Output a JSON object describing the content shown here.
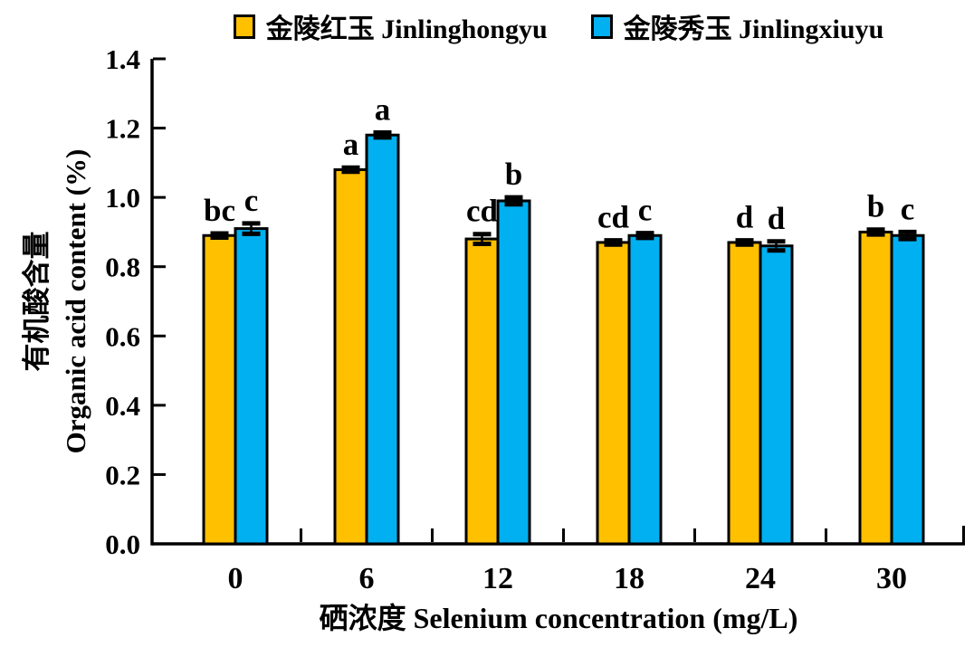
{
  "chart_data": {
    "type": "bar",
    "title": "",
    "categories": [
      "0",
      "6",
      "12",
      "18",
      "24",
      "30"
    ],
    "xlabel": "硒浓度 Selenium concentration (mg/L)",
    "ylabel_zh": "有机酸含量",
    "ylabel_en": "Organic acid content (%)",
    "ylim": [
      0.0,
      1.4
    ],
    "ytick_step": 0.2,
    "yticks": [
      "0.0",
      "0.2",
      "0.4",
      "0.6",
      "0.8",
      "1.0",
      "1.2",
      "1.4"
    ],
    "grid": false,
    "legend_position": "top",
    "axis_color": "#000000",
    "bar_outline_color": "#000000",
    "series": [
      {
        "name": "金陵红玉 Jinlinghongyu",
        "color": "#FFC000",
        "values": [
          0.89,
          1.08,
          0.88,
          0.87,
          0.87,
          0.9
        ],
        "errors": [
          0.006,
          0.006,
          0.014,
          0.006,
          0.006,
          0.007
        ],
        "letters": [
          "bc",
          "a",
          "cd",
          "cd",
          "d",
          "b"
        ]
      },
      {
        "name": "金陵秀玉 Jinlingxiuyu",
        "color": "#00B0F0",
        "values": [
          0.91,
          1.18,
          0.99,
          0.89,
          0.86,
          0.89
        ],
        "errors": [
          0.015,
          0.007,
          0.01,
          0.007,
          0.013,
          0.01
        ],
        "letters": [
          "c",
          "a",
          "b",
          "c",
          "d",
          "c"
        ]
      }
    ]
  }
}
